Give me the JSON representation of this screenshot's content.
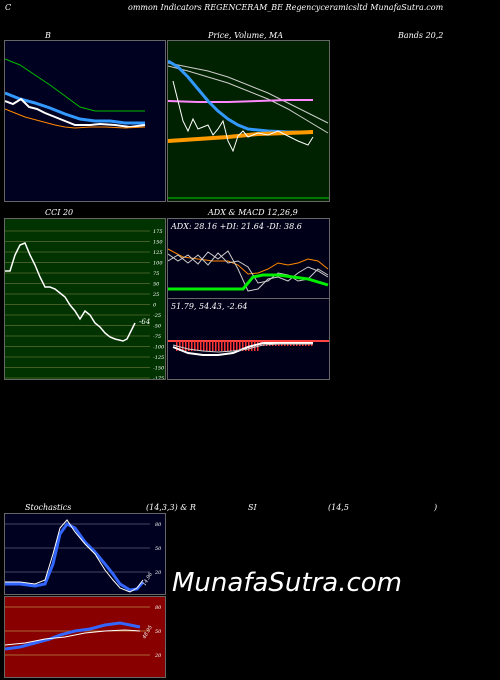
{
  "header": {
    "c_label": "C",
    "title": "ommon  Indicators REGENCERAM_BE Regencyceramicsltd MunafaSutra.com"
  },
  "labels": {
    "b": "B",
    "price_title": "Price,  Volume,  MA",
    "bands": "Bands 20,2",
    "cci": "CCI 20",
    "adx_macd": "ADX  & MACD 12,26,9",
    "adx_values": "ADX: 28.16  +DI: 21.64  -DI: 38.6",
    "macd_values": "51.79,  54.43,  -2.64",
    "stoch": "Stochastics",
    "stoch_params": "(14,3,3) & R",
    "si": "SI",
    "rsi_params": "(14,5",
    "rsi_close": ")"
  },
  "cci": {
    "ticks": [
      "175",
      "150",
      "125",
      "100",
      "75",
      "50",
      "25",
      "0",
      "-25",
      "-50",
      "-75",
      "-100",
      "-125",
      "-150",
      "-175"
    ],
    "value_label": "-64"
  },
  "stoch": {
    "ticks": [
      "80",
      "50",
      "20"
    ],
    "value_label": "14.96"
  },
  "rsi": {
    "ticks": [
      "80",
      "50",
      "20"
    ],
    "value_label": "48.95"
  },
  "watermark": "MunafaSutra.com",
  "colors": {
    "bands_bg": "#000020",
    "price_bg": "#002200",
    "cci_bg": "#003300",
    "adx_bg": "#000018",
    "rsi_bg": "#880000",
    "blue_line": "#3399ff",
    "green_line": "#00ee00",
    "orange_line": "#ff8800"
  }
}
